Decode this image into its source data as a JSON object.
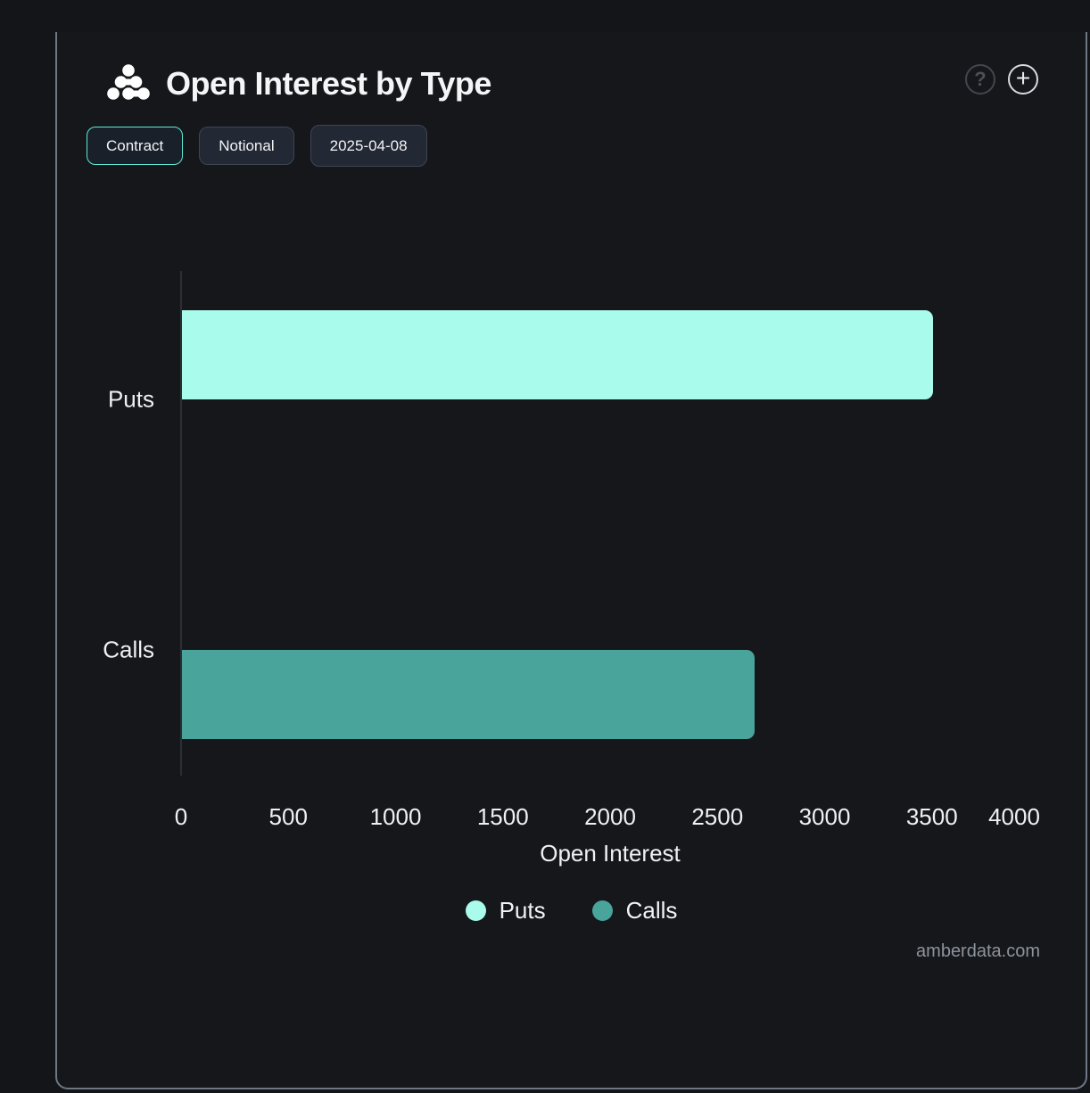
{
  "header": {
    "title": "Open Interest by Type",
    "help_label": "?",
    "add_label": "+"
  },
  "toolbar": {
    "buttons": [
      {
        "label": "Contract",
        "active": true
      },
      {
        "label": "Notional",
        "active": false
      },
      {
        "label": "2025-04-08",
        "active": false
      }
    ]
  },
  "chart_data": {
    "type": "bar",
    "orientation": "horizontal",
    "title": "Open Interest by Type",
    "categories": [
      "Puts",
      "Calls"
    ],
    "series": [
      {
        "name": "Puts",
        "values": [
          3500,
          0
        ],
        "color": "#a9fbeb"
      },
      {
        "name": "Calls",
        "values": [
          0,
          2670
        ],
        "color": "#49a49b"
      }
    ],
    "xlabel": "Open Interest",
    "ylabel": "",
    "xlim": [
      0,
      4000
    ],
    "xticks": [
      0,
      500,
      1000,
      1500,
      2000,
      2500,
      3000,
      3500,
      4000
    ],
    "grid": false,
    "legend_position": "bottom"
  },
  "footer": {
    "watermark": "amberdata.com"
  },
  "colors": {
    "accent_mint": "#5eead4",
    "puts_bar": "#a9fbeb",
    "calls_bar": "#49a49b",
    "panel_border": "#6e7884",
    "background": "#131519"
  }
}
